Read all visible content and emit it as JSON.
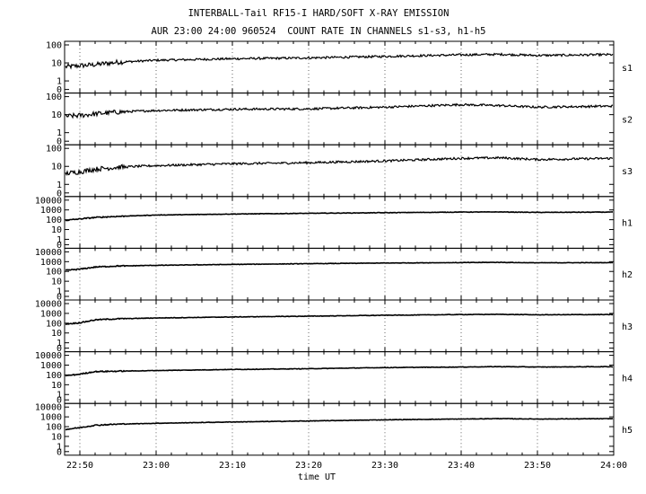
{
  "title": "INTERBALL-Tail RF15-I HARD/SOFT X-RAY EMISSION",
  "subtitle": "AUR 23:00 24:00 960524  COUNT RATE IN CHANNELS s1-s3, h1-h5",
  "chart_data": {
    "type": "line",
    "title": "INTERBALL-Tail RF15-I HARD/SOFT X-RAY EMISSION",
    "subtitle": "AUR 23:00 24:00 960524  COUNT RATE IN CHANNELS s1-s3, h1-h5",
    "xlabel": "time UT",
    "x_ticks": [
      "22:50",
      "23:00",
      "23:10",
      "23:20",
      "23:30",
      "23:40",
      "23:50",
      "24:00"
    ],
    "x_tick_minutes": [
      1370,
      1380,
      1390,
      1400,
      1410,
      1420,
      1430,
      1440
    ],
    "xlim_minutes": [
      1368,
      1440
    ],
    "y_scale": "log",
    "grid": true,
    "panels": [
      {
        "name": "s1",
        "ylim": [
          0,
          100
        ],
        "ytick_labels": [
          "100",
          "10",
          "1",
          "0"
        ],
        "series": {
          "t": [
            1368,
            1370,
            1372,
            1375,
            1380,
            1390,
            1400,
            1410,
            1420,
            1425,
            1430,
            1440
          ],
          "values": [
            6,
            7,
            8,
            11,
            14,
            17,
            19,
            23,
            28,
            30,
            26,
            29
          ]
        }
      },
      {
        "name": "s2",
        "ylim": [
          0,
          100
        ],
        "ytick_labels": [
          "100",
          "10",
          "1",
          "0"
        ],
        "series": {
          "t": [
            1368,
            1370,
            1372,
            1375,
            1380,
            1390,
            1400,
            1410,
            1420,
            1425,
            1430,
            1440
          ],
          "values": [
            8,
            9,
            11,
            14,
            17,
            20,
            21,
            26,
            36,
            32,
            26,
            30
          ]
        }
      },
      {
        "name": "s3",
        "ylim": [
          0,
          100
        ],
        "ytick_labels": [
          "100",
          "10",
          "1",
          "0"
        ],
        "series": {
          "t": [
            1368,
            1370,
            1372,
            1375,
            1380,
            1390,
            1400,
            1410,
            1420,
            1425,
            1430,
            1440
          ],
          "values": [
            4,
            5,
            7,
            9,
            11,
            14,
            16,
            20,
            28,
            30,
            24,
            28
          ]
        }
      },
      {
        "name": "h1",
        "ylim": [
          0,
          10000
        ],
        "ytick_labels": [
          "10000",
          "1000",
          "100",
          "10",
          "1",
          "0"
        ],
        "series": {
          "t": [
            1368,
            1370,
            1372,
            1375,
            1380,
            1390,
            1400,
            1410,
            1420,
            1425,
            1430,
            1440
          ],
          "values": [
            85,
            120,
            170,
            220,
            300,
            380,
            450,
            520,
            600,
            620,
            560,
            600
          ]
        }
      },
      {
        "name": "h2",
        "ylim": [
          0,
          10000
        ],
        "ytick_labels": [
          "10000",
          "1000",
          "100",
          "10",
          "1",
          "0"
        ],
        "series": {
          "t": [
            1368,
            1370,
            1372,
            1375,
            1380,
            1390,
            1400,
            1410,
            1420,
            1425,
            1430,
            1440
          ],
          "values": [
            130,
            170,
            280,
            360,
            420,
            520,
            620,
            720,
            800,
            850,
            760,
            800
          ]
        }
      },
      {
        "name": "h3",
        "ylim": [
          0,
          10000
        ],
        "ytick_labels": [
          "10000",
          "1000",
          "100",
          "10",
          "1",
          "0"
        ],
        "series": {
          "t": [
            1368,
            1370,
            1372,
            1375,
            1380,
            1390,
            1400,
            1410,
            1420,
            1425,
            1430,
            1440
          ],
          "values": [
            80,
            110,
            220,
            280,
            340,
            430,
            520,
            640,
            760,
            800,
            720,
            760
          ]
        }
      },
      {
        "name": "h4",
        "ylim": [
          0,
          10000
        ],
        "ytick_labels": [
          "10000",
          "1000",
          "100",
          "10",
          "1",
          "0"
        ],
        "series": {
          "t": [
            1368,
            1370,
            1372,
            1375,
            1380,
            1390,
            1400,
            1410,
            1420,
            1425,
            1430,
            1440
          ],
          "values": [
            80,
            120,
            220,
            240,
            280,
            360,
            430,
            560,
            640,
            700,
            640,
            700
          ]
        }
      },
      {
        "name": "h5",
        "ylim": [
          0,
          10000
        ],
        "ytick_labels": [
          "10000",
          "1000",
          "100",
          "10",
          "1",
          "0"
        ],
        "series": {
          "t": [
            1368,
            1370,
            1372,
            1375,
            1380,
            1390,
            1400,
            1410,
            1420,
            1425,
            1430,
            1440
          ],
          "values": [
            50,
            80,
            140,
            180,
            220,
            300,
            380,
            500,
            600,
            660,
            600,
            650
          ]
        }
      }
    ]
  }
}
